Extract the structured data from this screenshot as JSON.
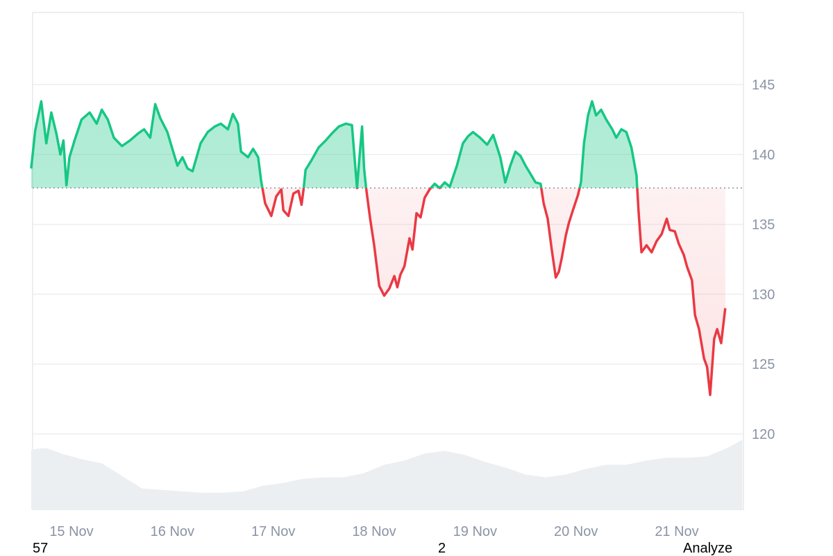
{
  "chart_data": {
    "type": "line",
    "subtype": "baseline-area-with-volume",
    "baseline": 137.6,
    "ylim": [
      114,
      150
    ],
    "y_ticks": [
      120,
      125,
      130,
      135,
      140,
      145
    ],
    "x_ticks": [
      "15 Nov",
      "16 Nov",
      "17 Nov",
      "18 Nov",
      "19 Nov",
      "20 Nov",
      "21 Nov"
    ],
    "x_tick_days": [
      0,
      1,
      2,
      3,
      4,
      5,
      6
    ],
    "xlim_days": [
      -0.4,
      6.65
    ],
    "colors": {
      "above_line": "#16c784",
      "above_fill": "#16c784",
      "below_line": "#ea3943",
      "below_fill": "#ea3943",
      "volume": "#eceff2",
      "grid": "#eeeeee",
      "baseline": "#8a93a6",
      "tick_text": "#8a93a6"
    },
    "series": [
      {
        "points": [
          [
            -0.4,
            139.0
          ],
          [
            -0.36,
            141.7
          ],
          [
            -0.3,
            143.8
          ],
          [
            -0.25,
            140.8
          ],
          [
            -0.2,
            143.0
          ],
          [
            -0.15,
            141.5
          ],
          [
            -0.11,
            140.0
          ],
          [
            -0.08,
            141.0
          ],
          [
            -0.05,
            137.8
          ],
          [
            -0.02,
            139.8
          ],
          [
            0.03,
            141.0
          ],
          [
            0.1,
            142.5
          ],
          [
            0.18,
            143.0
          ],
          [
            0.25,
            142.2
          ],
          [
            0.3,
            143.2
          ],
          [
            0.36,
            142.5
          ],
          [
            0.42,
            141.2
          ],
          [
            0.5,
            140.6
          ],
          [
            0.58,
            141.0
          ],
          [
            0.66,
            141.5
          ],
          [
            0.72,
            141.8
          ],
          [
            0.78,
            141.2
          ],
          [
            0.83,
            143.6
          ],
          [
            0.88,
            142.6
          ],
          [
            0.95,
            141.6
          ],
          [
            1.0,
            140.4
          ],
          [
            1.05,
            139.2
          ],
          [
            1.1,
            139.8
          ],
          [
            1.15,
            139.0
          ],
          [
            1.2,
            138.8
          ],
          [
            1.28,
            140.8
          ],
          [
            1.35,
            141.6
          ],
          [
            1.42,
            142.0
          ],
          [
            1.48,
            142.2
          ],
          [
            1.55,
            141.8
          ],
          [
            1.6,
            142.9
          ],
          [
            1.65,
            142.2
          ],
          [
            1.68,
            140.2
          ],
          [
            1.75,
            139.8
          ],
          [
            1.8,
            140.4
          ],
          [
            1.85,
            139.8
          ],
          [
            1.88,
            138.1
          ],
          [
            1.92,
            136.5
          ],
          [
            1.98,
            135.6
          ],
          [
            2.03,
            137.0
          ],
          [
            2.08,
            137.5
          ],
          [
            2.1,
            136.0
          ],
          [
            2.15,
            135.6
          ],
          [
            2.2,
            137.2
          ],
          [
            2.25,
            137.4
          ],
          [
            2.28,
            136.4
          ],
          [
            2.3,
            137.5
          ],
          [
            2.32,
            138.9
          ],
          [
            2.38,
            139.6
          ],
          [
            2.45,
            140.5
          ],
          [
            2.52,
            141.0
          ],
          [
            2.58,
            141.5
          ],
          [
            2.65,
            142.0
          ],
          [
            2.72,
            142.2
          ],
          [
            2.78,
            142.1
          ],
          [
            2.83,
            137.6
          ],
          [
            2.85,
            139.4
          ],
          [
            2.88,
            142.0
          ],
          [
            2.9,
            139.0
          ],
          [
            2.92,
            137.6
          ],
          [
            2.96,
            135.4
          ],
          [
            3.0,
            133.5
          ],
          [
            3.05,
            130.6
          ],
          [
            3.1,
            129.9
          ],
          [
            3.15,
            130.4
          ],
          [
            3.2,
            131.3
          ],
          [
            3.23,
            130.5
          ],
          [
            3.26,
            131.4
          ],
          [
            3.3,
            132.0
          ],
          [
            3.35,
            134.0
          ],
          [
            3.38,
            133.2
          ],
          [
            3.42,
            135.8
          ],
          [
            3.46,
            135.5
          ],
          [
            3.5,
            136.9
          ],
          [
            3.55,
            137.5
          ],
          [
            3.6,
            137.9
          ],
          [
            3.65,
            137.6
          ],
          [
            3.7,
            138.0
          ],
          [
            3.75,
            137.7
          ],
          [
            3.82,
            139.2
          ],
          [
            3.88,
            140.8
          ],
          [
            3.93,
            141.3
          ],
          [
            3.98,
            141.6
          ],
          [
            4.05,
            141.2
          ],
          [
            4.12,
            140.7
          ],
          [
            4.18,
            141.4
          ],
          [
            4.25,
            139.8
          ],
          [
            4.3,
            138.0
          ],
          [
            4.35,
            139.2
          ],
          [
            4.4,
            140.2
          ],
          [
            4.45,
            139.9
          ],
          [
            4.5,
            139.2
          ],
          [
            4.55,
            138.6
          ],
          [
            4.6,
            138.0
          ],
          [
            4.65,
            137.9
          ],
          [
            4.68,
            136.5
          ],
          [
            4.72,
            135.4
          ],
          [
            4.76,
            133.2
          ],
          [
            4.8,
            131.2
          ],
          [
            4.83,
            131.6
          ],
          [
            4.86,
            132.6
          ],
          [
            4.9,
            134.2
          ],
          [
            4.93,
            135.1
          ],
          [
            4.97,
            136.0
          ],
          [
            5.02,
            137.1
          ],
          [
            5.05,
            138.0
          ],
          [
            5.08,
            140.8
          ],
          [
            5.12,
            142.8
          ],
          [
            5.16,
            143.8
          ],
          [
            5.2,
            142.8
          ],
          [
            5.25,
            143.2
          ],
          [
            5.3,
            142.5
          ],
          [
            5.36,
            141.8
          ],
          [
            5.4,
            141.2
          ],
          [
            5.45,
            141.8
          ],
          [
            5.5,
            141.6
          ],
          [
            5.55,
            140.5
          ],
          [
            5.6,
            138.5
          ],
          [
            5.62,
            136.0
          ],
          [
            5.65,
            133.0
          ],
          [
            5.7,
            133.5
          ],
          [
            5.75,
            133.0
          ],
          [
            5.8,
            133.8
          ],
          [
            5.85,
            134.3
          ],
          [
            5.9,
            135.4
          ],
          [
            5.93,
            134.6
          ],
          [
            5.98,
            134.5
          ],
          [
            6.02,
            133.6
          ],
          [
            6.07,
            132.8
          ],
          [
            6.1,
            132.0
          ],
          [
            6.15,
            131.0
          ],
          [
            6.18,
            128.5
          ],
          [
            6.22,
            127.5
          ],
          [
            6.27,
            125.4
          ],
          [
            6.3,
            124.8
          ],
          [
            6.33,
            122.8
          ],
          [
            6.37,
            126.8
          ],
          [
            6.4,
            127.5
          ],
          [
            6.44,
            126.5
          ],
          [
            6.48,
            129.0
          ]
        ]
      }
    ],
    "volume": [
      [
        -0.4,
        118.9
      ],
      [
        -0.25,
        119.0
      ],
      [
        -0.1,
        118.6
      ],
      [
        0.1,
        118.2
      ],
      [
        0.3,
        117.9
      ],
      [
        0.5,
        117.0
      ],
      [
        0.7,
        116.1
      ],
      [
        0.9,
        116.0
      ],
      [
        1.1,
        115.9
      ],
      [
        1.3,
        115.8
      ],
      [
        1.5,
        115.8
      ],
      [
        1.7,
        115.9
      ],
      [
        1.9,
        116.3
      ],
      [
        2.1,
        116.5
      ],
      [
        2.3,
        116.8
      ],
      [
        2.5,
        116.9
      ],
      [
        2.7,
        116.9
      ],
      [
        2.9,
        117.2
      ],
      [
        3.1,
        117.8
      ],
      [
        3.3,
        118.1
      ],
      [
        3.5,
        118.6
      ],
      [
        3.7,
        118.8
      ],
      [
        3.9,
        118.5
      ],
      [
        4.1,
        118.0
      ],
      [
        4.3,
        117.6
      ],
      [
        4.5,
        117.1
      ],
      [
        4.7,
        116.9
      ],
      [
        4.9,
        117.1
      ],
      [
        5.1,
        117.5
      ],
      [
        5.3,
        117.8
      ],
      [
        5.5,
        117.8
      ],
      [
        5.7,
        118.1
      ],
      [
        5.9,
        118.3
      ],
      [
        6.1,
        118.3
      ],
      [
        6.3,
        118.4
      ],
      [
        6.5,
        119.0
      ],
      [
        6.65,
        119.6
      ]
    ]
  },
  "footer": {
    "left_value": "57",
    "center_value": "2",
    "analyze_label": "Analyze"
  }
}
